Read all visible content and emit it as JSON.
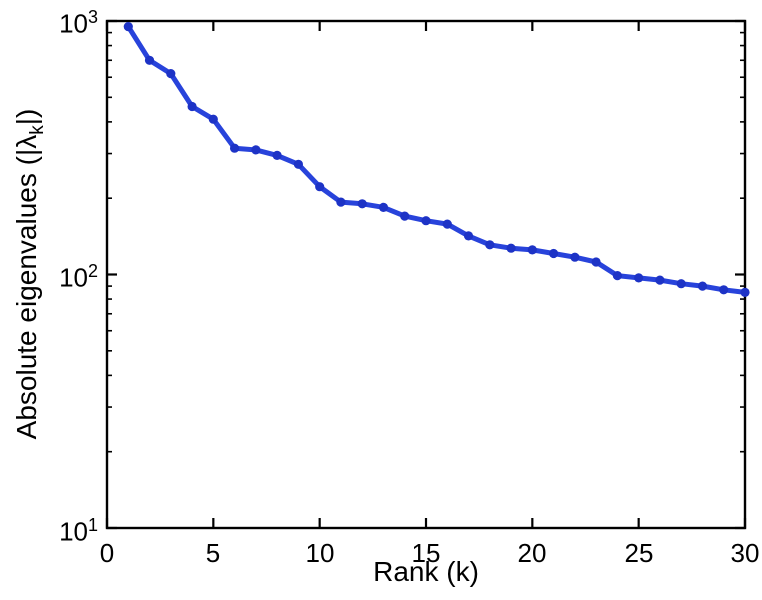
{
  "figure": {
    "background": "#ffffff"
  },
  "chart_data": {
    "type": "line",
    "title": "",
    "xlabel": "Rank (k)",
    "ylabel_prefix": "Absolute eigenvalues (|λ",
    "ylabel_sub": "k",
    "ylabel_suffix": "|)",
    "yscale": "log",
    "xlim": [
      0,
      30
    ],
    "ylim": [
      10,
      1000
    ],
    "xticks": [
      0,
      5,
      10,
      15,
      20,
      25,
      30
    ],
    "xtick_labels": [
      "0",
      "5",
      "10",
      "15",
      "20",
      "25",
      "30"
    ],
    "ytick_base": "10",
    "ytick_exponents": [
      "3",
      "2",
      "1"
    ],
    "grid": false,
    "legend": null,
    "x": [
      1,
      2,
      3,
      4,
      5,
      6,
      7,
      8,
      9,
      10,
      11,
      12,
      13,
      14,
      15,
      16,
      17,
      18,
      19,
      20,
      21,
      22,
      23,
      24,
      25,
      26,
      27,
      28,
      29,
      30
    ],
    "values": [
      950,
      700,
      620,
      460,
      410,
      315,
      310,
      295,
      272,
      222,
      193,
      190,
      184,
      170,
      163,
      158,
      142,
      131,
      127,
      125,
      121,
      117,
      112,
      99,
      97,
      95,
      92,
      90,
      87,
      85
    ],
    "series_name": "absolute-eigenvalues",
    "line_color": "#2843db",
    "marker_color": "#1d33c6",
    "axis_color": "#000000"
  }
}
